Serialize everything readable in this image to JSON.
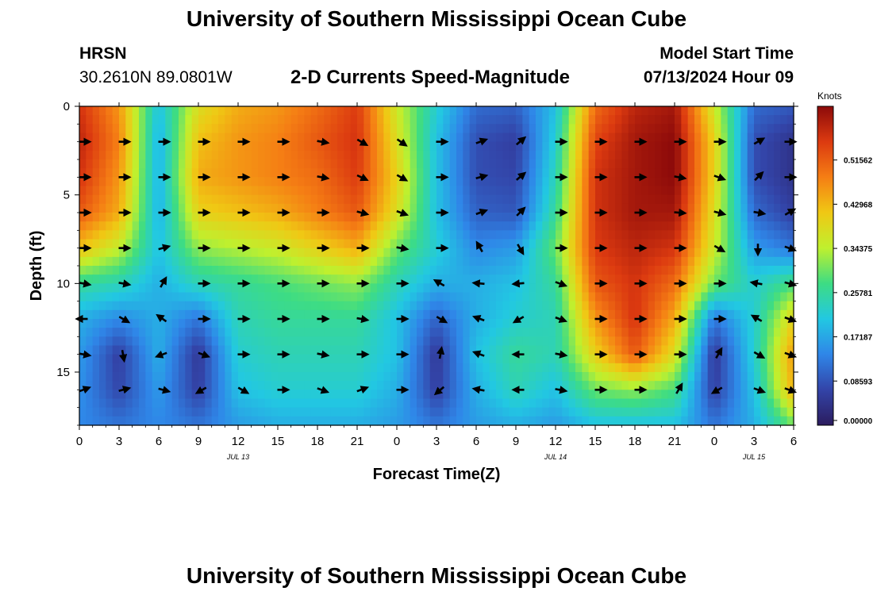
{
  "header": {
    "title": "University of Southern Mississippi Ocean Cube",
    "station": "HRSN",
    "coords": "30.2610N  89.0801W",
    "subtitle": "2-D Currents Speed-Magnitude",
    "model_label": "Model Start Time",
    "model_time": "07/13/2024 Hour 09"
  },
  "footer": {
    "title": "University of Southern Mississippi Ocean Cube"
  },
  "chart_data": {
    "type": "heatmap",
    "title": "2-D Currents Speed-Magnitude",
    "xlabel": "Forecast Time(Z)",
    "ylabel": "Depth (ft)",
    "x_range_hours": [
      0,
      54
    ],
    "y_range_ft": [
      0,
      18
    ],
    "x_ticks": [
      "0",
      "3",
      "6",
      "9",
      "12",
      "15",
      "18",
      "21",
      "0",
      "3",
      "6",
      "9",
      "12",
      "15",
      "18",
      "21",
      "0",
      "3",
      "6"
    ],
    "y_ticks": [
      "0",
      "5",
      "10",
      "15"
    ],
    "date_labels": [
      {
        "text": "JUL 13",
        "hour": 12
      },
      {
        "text": "JUL 14",
        "hour": 36
      },
      {
        "text": "JUL 15",
        "hour": 51
      }
    ],
    "colorbar": {
      "unit": "Knots",
      "ticks": [
        "0.00000",
        "0.08593",
        "0.17187",
        "0.25781",
        "0.34375",
        "0.42968",
        "0.51562"
      ],
      "min": 0.0,
      "max": 0.62,
      "colors": [
        "#2b1c5e",
        "#3344a8",
        "#2f86e8",
        "#22c8e2",
        "#3ddc84",
        "#bff02e",
        "#f0c814",
        "#f57e14",
        "#dc3a10",
        "#8c0a0a"
      ]
    },
    "speed_grid": {
      "depths_ft": [
        0,
        2,
        4,
        6,
        8,
        10,
        12,
        14,
        16,
        18
      ],
      "hours": [
        0,
        3,
        6,
        9,
        12,
        15,
        18,
        21,
        24,
        27,
        30,
        33,
        36,
        39,
        42,
        45,
        48,
        51,
        54
      ],
      "values": [
        [
          0.56,
          0.46,
          0.2,
          0.38,
          0.44,
          0.46,
          0.5,
          0.55,
          0.36,
          0.22,
          0.11,
          0.1,
          0.2,
          0.5,
          0.58,
          0.6,
          0.36,
          0.11,
          0.09
        ],
        [
          0.58,
          0.48,
          0.18,
          0.42,
          0.46,
          0.48,
          0.52,
          0.56,
          0.38,
          0.2,
          0.08,
          0.06,
          0.22,
          0.54,
          0.6,
          0.62,
          0.4,
          0.08,
          0.04
        ],
        [
          0.56,
          0.46,
          0.18,
          0.44,
          0.46,
          0.48,
          0.5,
          0.55,
          0.4,
          0.2,
          0.08,
          0.07,
          0.24,
          0.56,
          0.6,
          0.62,
          0.4,
          0.08,
          0.04
        ],
        [
          0.52,
          0.44,
          0.18,
          0.4,
          0.42,
          0.44,
          0.48,
          0.52,
          0.38,
          0.2,
          0.1,
          0.09,
          0.26,
          0.56,
          0.6,
          0.6,
          0.38,
          0.11,
          0.06
        ],
        [
          0.42,
          0.35,
          0.2,
          0.32,
          0.34,
          0.36,
          0.4,
          0.44,
          0.3,
          0.22,
          0.14,
          0.16,
          0.3,
          0.55,
          0.58,
          0.56,
          0.36,
          0.16,
          0.12
        ],
        [
          0.26,
          0.24,
          0.18,
          0.24,
          0.26,
          0.28,
          0.3,
          0.32,
          0.24,
          0.18,
          0.18,
          0.2,
          0.26,
          0.52,
          0.56,
          0.5,
          0.3,
          0.22,
          0.28
        ],
        [
          0.18,
          0.14,
          0.18,
          0.12,
          0.24,
          0.26,
          0.26,
          0.26,
          0.2,
          0.1,
          0.18,
          0.22,
          0.24,
          0.46,
          0.56,
          0.44,
          0.12,
          0.22,
          0.4
        ],
        [
          0.16,
          0.06,
          0.18,
          0.05,
          0.22,
          0.24,
          0.24,
          0.24,
          0.2,
          0.05,
          0.2,
          0.26,
          0.24,
          0.4,
          0.52,
          0.38,
          0.05,
          0.22,
          0.46
        ],
        [
          0.15,
          0.07,
          0.16,
          0.06,
          0.2,
          0.22,
          0.22,
          0.22,
          0.18,
          0.06,
          0.18,
          0.24,
          0.2,
          0.3,
          0.32,
          0.28,
          0.06,
          0.2,
          0.44
        ],
        [
          0.14,
          0.12,
          0.14,
          0.12,
          0.16,
          0.18,
          0.18,
          0.18,
          0.16,
          0.12,
          0.16,
          0.18,
          0.16,
          0.2,
          0.2,
          0.2,
          0.12,
          0.18,
          0.3
        ]
      ]
    },
    "vector_field": {
      "depths_ft": [
        2,
        4,
        6,
        8,
        10,
        12,
        14,
        16
      ],
      "hours": [
        0,
        3,
        6,
        9,
        12,
        15,
        18,
        21,
        24,
        27,
        30,
        33,
        36,
        39,
        42,
        45,
        48,
        51,
        54
      ],
      "directions_deg": [
        [
          0,
          0,
          0,
          0,
          0,
          0,
          -10,
          -30,
          -35,
          0,
          20,
          40,
          0,
          0,
          0,
          0,
          0,
          30,
          0
        ],
        [
          0,
          0,
          0,
          0,
          0,
          0,
          -10,
          -25,
          -30,
          0,
          15,
          40,
          0,
          0,
          0,
          -10,
          -20,
          45,
          0
        ],
        [
          0,
          0,
          0,
          0,
          0,
          0,
          0,
          -15,
          -20,
          0,
          20,
          45,
          0,
          0,
          0,
          -5,
          -15,
          -10,
          30
        ],
        [
          0,
          0,
          15,
          0,
          0,
          0,
          0,
          0,
          -10,
          0,
          120,
          -60,
          0,
          0,
          0,
          0,
          -30,
          -90,
          -20
        ],
        [
          -10,
          -10,
          60,
          0,
          0,
          0,
          0,
          0,
          0,
          150,
          175,
          185,
          -20,
          0,
          0,
          0,
          0,
          170,
          -15
        ],
        [
          180,
          -30,
          145,
          0,
          0,
          0,
          0,
          -10,
          0,
          -30,
          160,
          210,
          -20,
          0,
          0,
          0,
          0,
          150,
          -20
        ],
        [
          -10,
          -80,
          200,
          -20,
          0,
          0,
          -10,
          0,
          0,
          80,
          160,
          180,
          -10,
          0,
          0,
          0,
          60,
          -30,
          -20
        ],
        [
          20,
          15,
          -15,
          210,
          -30,
          0,
          -20,
          20,
          0,
          220,
          170,
          180,
          -10,
          0,
          0,
          60,
          210,
          -20,
          -20
        ]
      ]
    }
  }
}
